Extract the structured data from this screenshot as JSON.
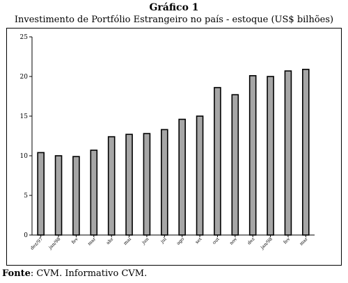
{
  "heading": "Gráfico 1",
  "chart_data": {
    "type": "bar",
    "title": "Investimento de Portfólio Estrangeiro no país - estoque (US$ bilhões)",
    "xlabel": "",
    "ylabel": "",
    "ylim": [
      0,
      25
    ],
    "yticks": [
      0,
      5,
      10,
      15,
      20,
      25
    ],
    "grid": false,
    "categories": [
      "dez/97",
      "jan/98",
      "fev",
      "mar",
      "abr",
      "mai",
      "jun",
      "jul",
      "ago",
      "set",
      "out",
      "nov",
      "dez",
      "jan/98",
      "fev",
      "mar"
    ],
    "values": [
      10.4,
      10.0,
      9.9,
      10.7,
      12.4,
      12.7,
      12.8,
      13.3,
      14.6,
      15.0,
      18.6,
      17.7,
      20.1,
      20.0,
      20.7,
      20.9
    ],
    "colors": {
      "bar_fill": "#a6a6a6",
      "bar_stroke": "#000000"
    }
  },
  "source": {
    "label": "Fonte",
    "text": ": CVM. Informativo CVM."
  }
}
